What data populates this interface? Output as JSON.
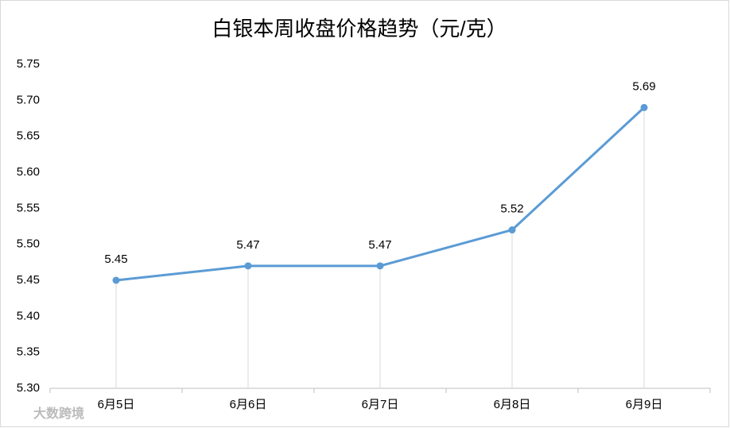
{
  "chart_data": {
    "type": "line",
    "title": "白银本周收盘价格趋势（元/克）",
    "categories": [
      "6月5日",
      "6月6日",
      "6月7日",
      "6月8日",
      "6月9日"
    ],
    "values": [
      5.45,
      5.47,
      5.47,
      5.52,
      5.69
    ],
    "color": "#5b9bd5",
    "ylim": [
      5.3,
      5.75
    ],
    "yticks": [
      {
        "value": 5.3,
        "label": "5.30"
      },
      5.35,
      {
        "value": 5.4,
        "label": "5.40"
      },
      5.45,
      {
        "value": 5.5,
        "label": "5.50"
      },
      5.55,
      {
        "value": 5.6,
        "label": "5.60"
      },
      5.65,
      {
        "value": 5.7,
        "label": "5.70"
      },
      5.75
    ],
    "grid": false,
    "drop_lines": true,
    "watermark": "大数跨境"
  }
}
